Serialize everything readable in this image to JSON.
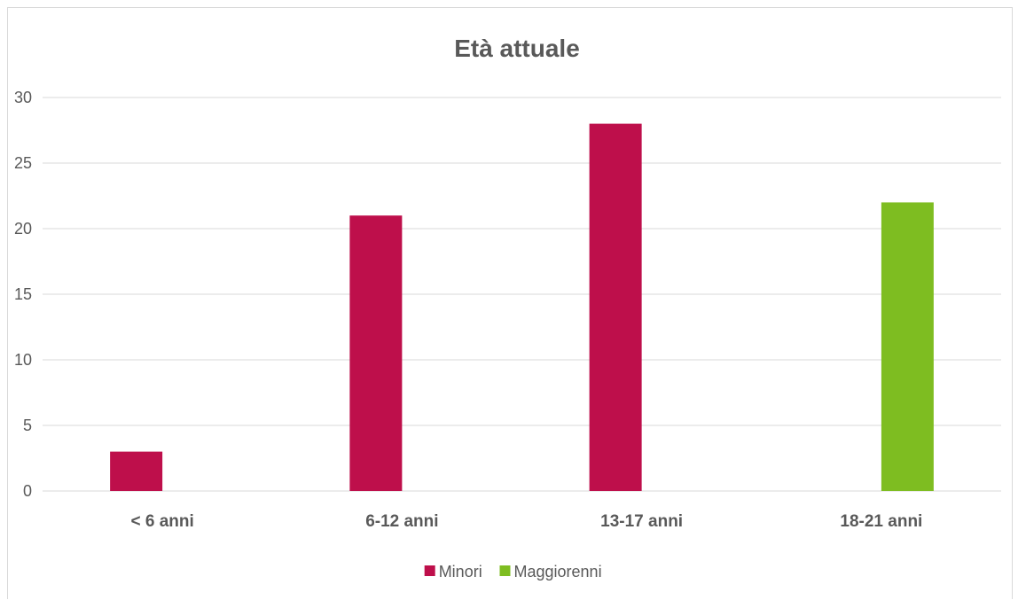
{
  "chart_data": {
    "type": "bar",
    "title": "Età attuale",
    "categories": [
      "< 6 anni",
      "6-12 anni",
      "13-17 anni",
      "18-21 anni"
    ],
    "series": [
      {
        "name": "Minori",
        "values": [
          3,
          21,
          28,
          null
        ],
        "color": "#be0f4b"
      },
      {
        "name": "Maggiorenni",
        "values": [
          null,
          null,
          null,
          22
        ],
        "color": "#7ebd21"
      }
    ],
    "ylim": [
      0,
      30
    ],
    "yticks": [
      0,
      5,
      10,
      15,
      20,
      25,
      30
    ],
    "grid": true,
    "legend": "bottom"
  }
}
